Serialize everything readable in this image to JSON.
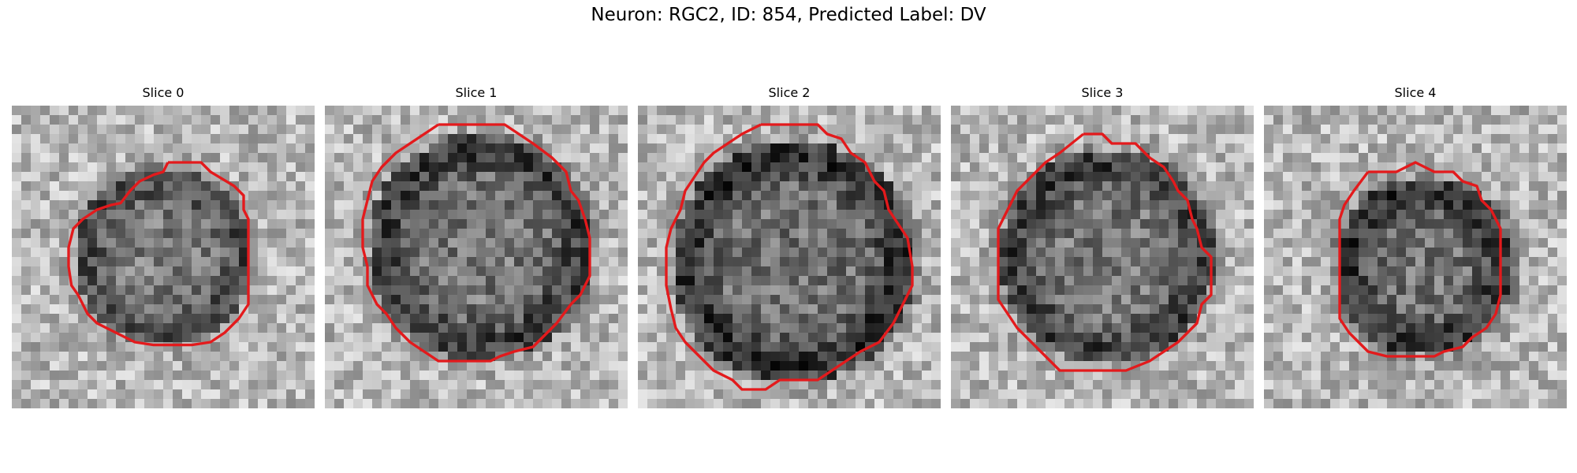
{
  "figure": {
    "title": "Neuron: RGC2, ID: 854, Predicted Label: DV"
  },
  "colors": {
    "background": "#ffffff",
    "contour": "#e31a1c",
    "colormap": "gray"
  },
  "slices": [
    {
      "title": "Slice 0"
    },
    {
      "title": "Slice 1"
    },
    {
      "title": "Slice 2"
    },
    {
      "title": "Slice 3"
    },
    {
      "title": "Slice 4"
    }
  ]
}
